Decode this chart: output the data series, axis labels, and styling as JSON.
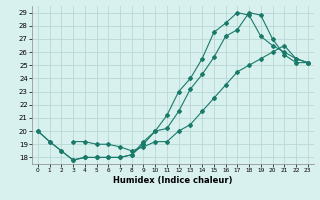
{
  "title": "",
  "xlabel": "Humidex (Indice chaleur)",
  "bg_color": "#d8f0ee",
  "grid_color": "#b8d8d4",
  "line_color": "#1a7a6a",
  "xlim": [
    -0.5,
    23.5
  ],
  "ylim": [
    17.5,
    29.5
  ],
  "xticks": [
    0,
    1,
    2,
    3,
    4,
    5,
    6,
    7,
    8,
    9,
    10,
    11,
    12,
    13,
    14,
    15,
    16,
    17,
    18,
    19,
    20,
    21,
    22,
    23
  ],
  "yticks": [
    18,
    19,
    20,
    21,
    22,
    23,
    24,
    25,
    26,
    27,
    28,
    29
  ],
  "line1_x": [
    0,
    1,
    2,
    3,
    4,
    5,
    6,
    7,
    8,
    9,
    10,
    11,
    12,
    13,
    14,
    15,
    16,
    17,
    18,
    19,
    20,
    21,
    22,
    23
  ],
  "line1_y": [
    20.0,
    19.2,
    18.5,
    17.8,
    18.0,
    18.0,
    18.0,
    18.0,
    18.2,
    19.0,
    20.0,
    20.2,
    21.5,
    23.2,
    24.3,
    25.6,
    27.2,
    27.7,
    29.0,
    28.8,
    27.0,
    25.8,
    25.2,
    25.2
  ],
  "line2_x": [
    0,
    1,
    2,
    3,
    4,
    5,
    6,
    7,
    8,
    9,
    10,
    11,
    12,
    13,
    14,
    15,
    16,
    17,
    18,
    19,
    20,
    21,
    22,
    23
  ],
  "line2_y": [
    20.0,
    19.2,
    18.5,
    17.8,
    18.0,
    18.0,
    18.0,
    18.0,
    18.2,
    19.2,
    20.0,
    21.2,
    23.0,
    24.0,
    25.5,
    27.5,
    28.2,
    29.0,
    28.8,
    27.2,
    26.5,
    26.0,
    25.5,
    25.2
  ],
  "line3_x": [
    3,
    4,
    5,
    6,
    7,
    8,
    9,
    10,
    11,
    12,
    13,
    14,
    15,
    16,
    17,
    18,
    19,
    20,
    21,
    22,
    23
  ],
  "line3_y": [
    19.2,
    19.2,
    19.0,
    19.0,
    18.8,
    18.5,
    18.8,
    19.2,
    19.2,
    20.0,
    20.5,
    21.5,
    22.5,
    23.5,
    24.5,
    25.0,
    25.5,
    26.0,
    26.5,
    25.5,
    25.2
  ]
}
